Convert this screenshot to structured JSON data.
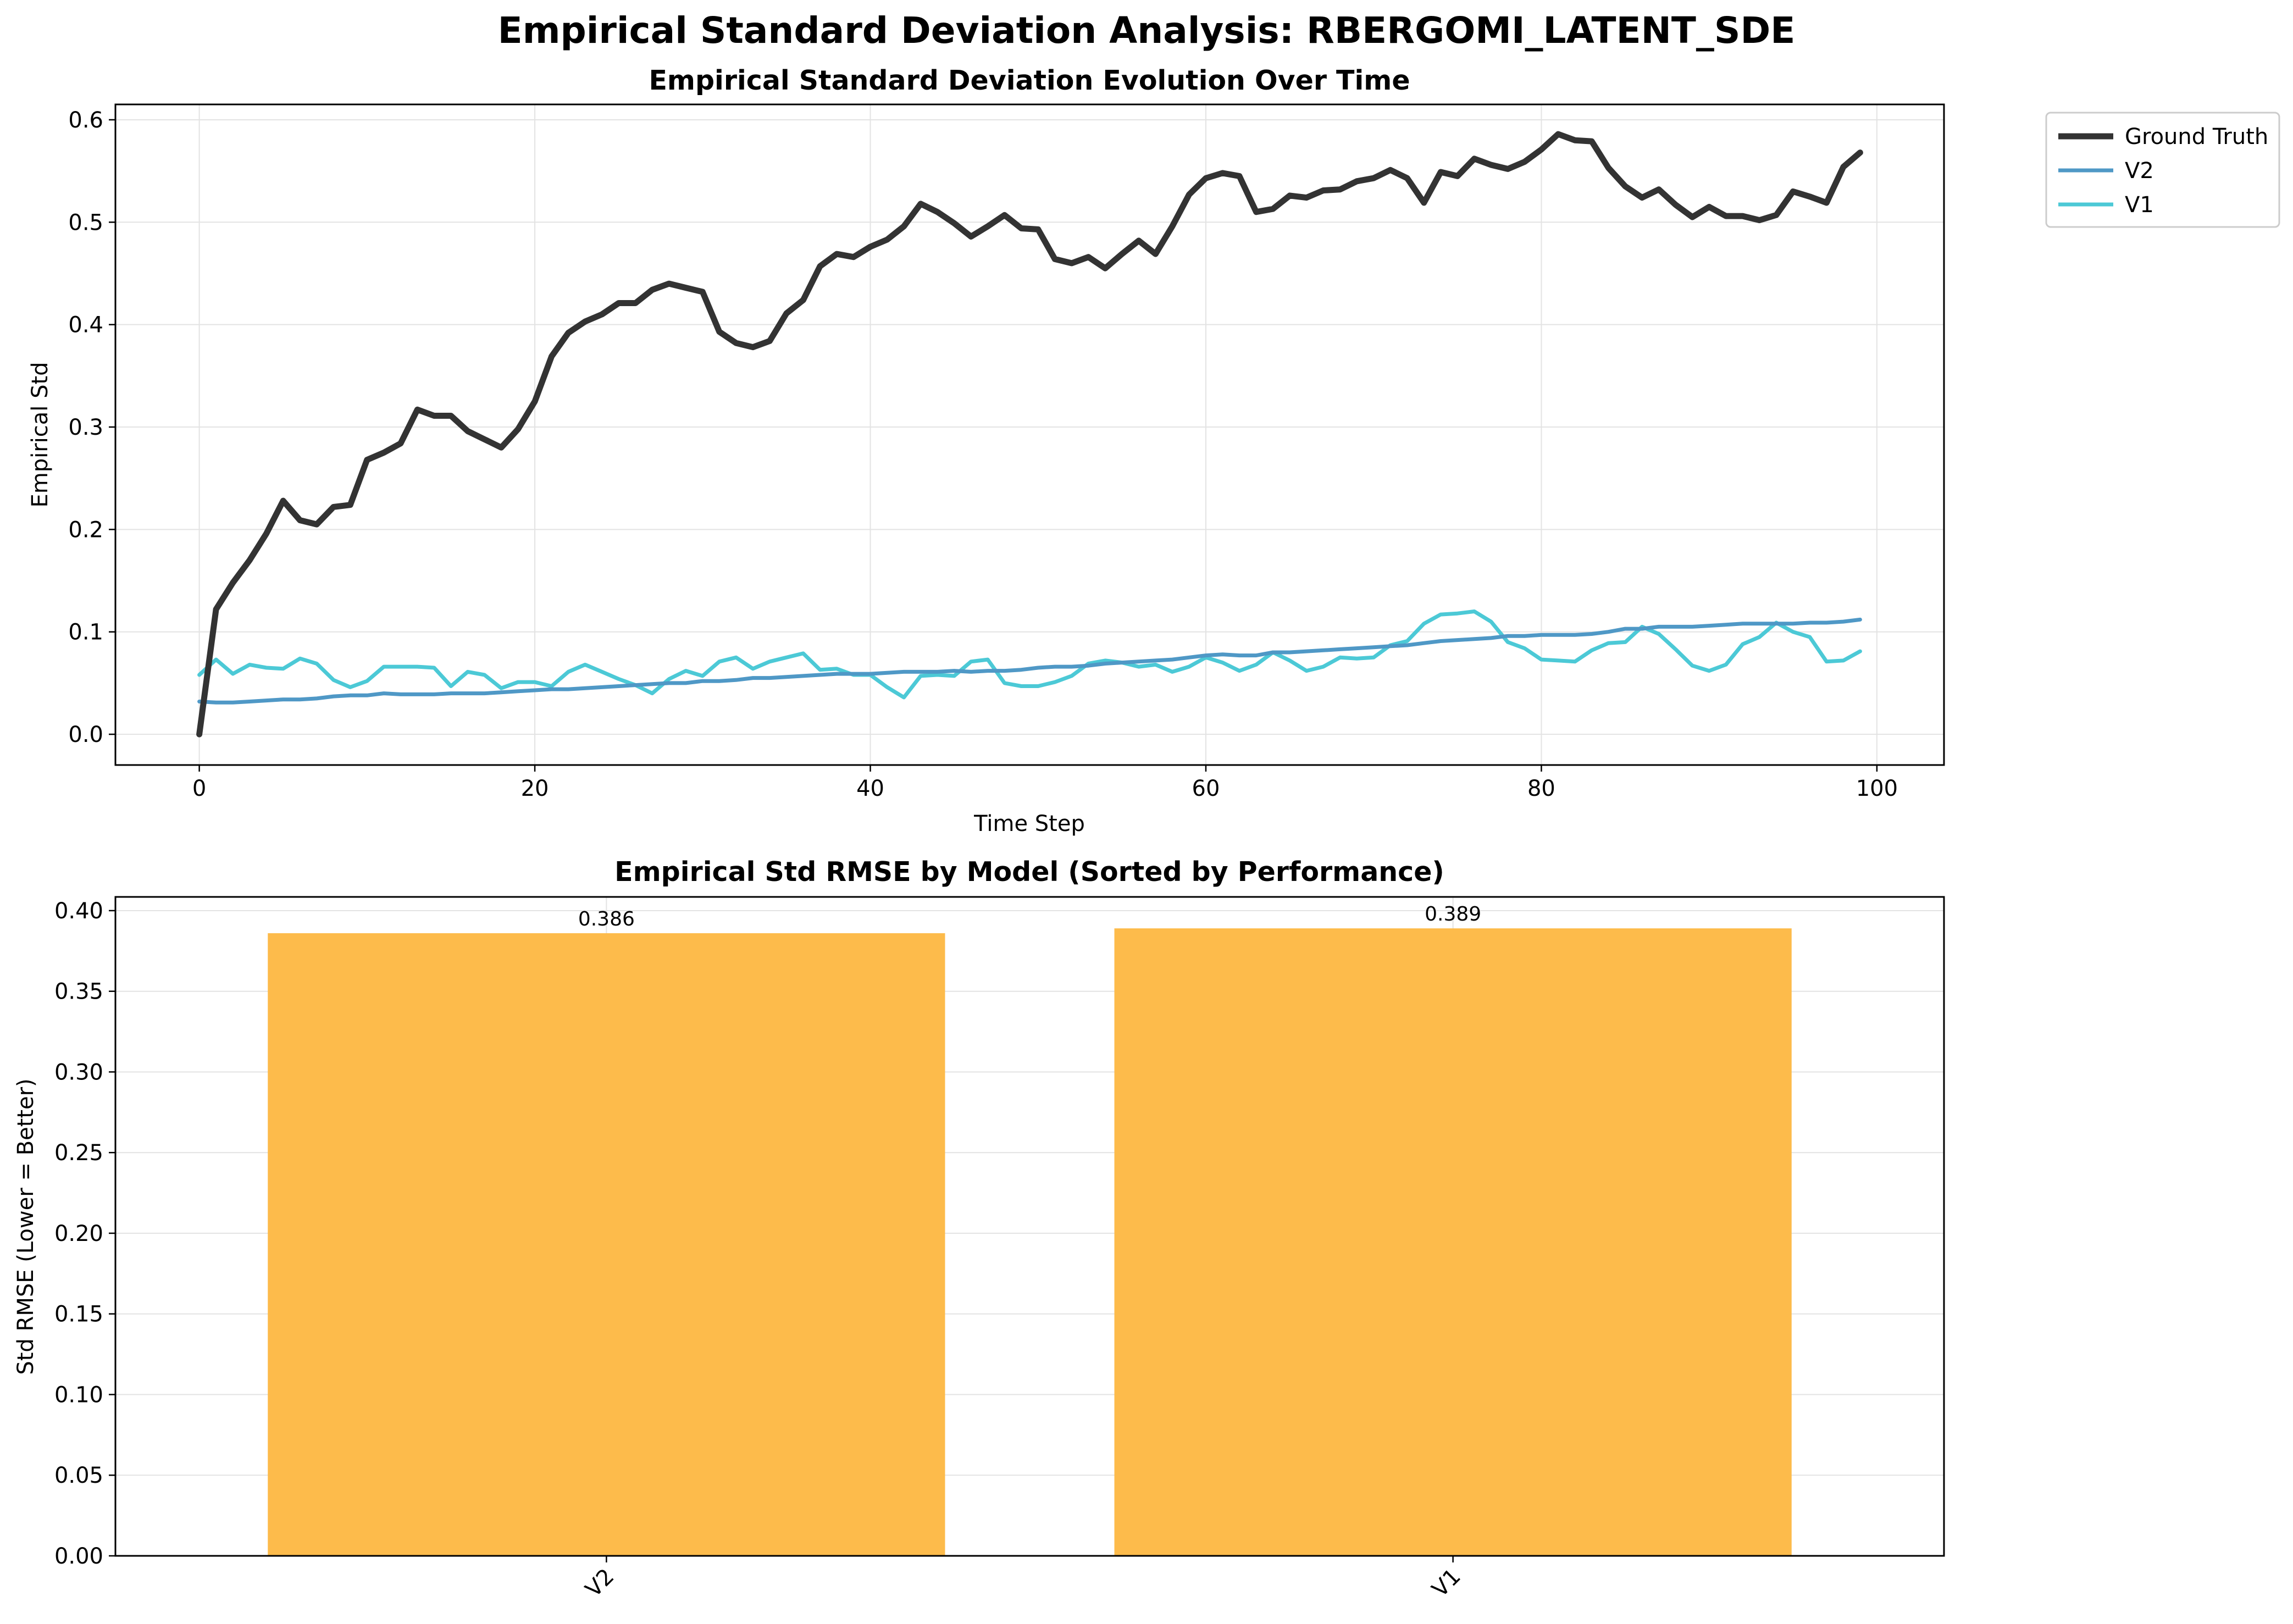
{
  "figure": {
    "suptitle": "Empirical Standard Deviation Analysis: RBERGOMI_LATENT_SDE"
  },
  "chart_data": [
    {
      "type": "line",
      "title": "Empirical Standard Deviation Evolution Over Time",
      "xlabel": "Time Step",
      "ylabel": "Empirical Std",
      "xlim": [
        -5,
        104
      ],
      "ylim": [
        -0.03,
        0.615
      ],
      "xticks": [
        0,
        20,
        40,
        60,
        80,
        100
      ],
      "xtick_labels": [
        "0",
        "20",
        "40",
        "60",
        "80",
        "100"
      ],
      "yticks": [
        0.0,
        0.1,
        0.2,
        0.3,
        0.4,
        0.5,
        0.6
      ],
      "ytick_labels": [
        "0.0",
        "0.1",
        "0.2",
        "0.3",
        "0.4",
        "0.5",
        "0.6"
      ],
      "grid": true,
      "legend_position": "outside-top-right",
      "series": [
        {
          "name": "Ground Truth",
          "color": "#333333",
          "values": [
            0.0,
            0.122,
            0.148,
            0.17,
            0.196,
            0.228,
            0.209,
            0.205,
            0.222,
            0.224,
            0.268,
            0.275,
            0.284,
            0.317,
            0.311,
            0.311,
            0.296,
            0.288,
            0.28,
            0.298,
            0.325,
            0.369,
            0.392,
            0.403,
            0.41,
            0.421,
            0.421,
            0.434,
            0.44,
            0.436,
            0.432,
            0.393,
            0.382,
            0.378,
            0.384,
            0.411,
            0.424,
            0.457,
            0.469,
            0.466,
            0.476,
            0.483,
            0.496,
            0.518,
            0.51,
            0.499,
            0.486,
            0.496,
            0.507,
            0.494,
            0.493,
            0.464,
            0.46,
            0.466,
            0.455,
            0.469,
            0.482,
            0.469,
            0.496,
            0.527,
            0.543,
            0.548,
            0.545,
            0.51,
            0.513,
            0.526,
            0.524,
            0.531,
            0.532,
            0.54,
            0.543,
            0.551,
            0.543,
            0.519,
            0.549,
            0.545,
            0.562,
            0.556,
            0.552,
            0.559,
            0.571,
            0.586,
            0.58,
            0.579,
            0.553,
            0.535,
            0.524,
            0.532,
            0.517,
            0.505,
            0.515,
            0.506,
            0.506,
            0.502,
            0.507,
            0.53,
            0.525,
            0.519,
            0.554,
            0.568
          ]
        },
        {
          "name": "V2",
          "color": "#4f98c6",
          "values": [
            0.032,
            0.031,
            0.031,
            0.032,
            0.033,
            0.034,
            0.034,
            0.035,
            0.037,
            0.038,
            0.038,
            0.04,
            0.039,
            0.039,
            0.039,
            0.04,
            0.04,
            0.04,
            0.041,
            0.042,
            0.043,
            0.044,
            0.044,
            0.045,
            0.046,
            0.047,
            0.048,
            0.049,
            0.05,
            0.05,
            0.052,
            0.052,
            0.053,
            0.055,
            0.055,
            0.056,
            0.057,
            0.058,
            0.059,
            0.059,
            0.059,
            0.06,
            0.061,
            0.061,
            0.061,
            0.062,
            0.061,
            0.062,
            0.062,
            0.063,
            0.065,
            0.066,
            0.066,
            0.067,
            0.069,
            0.07,
            0.071,
            0.072,
            0.073,
            0.075,
            0.077,
            0.078,
            0.077,
            0.077,
            0.08,
            0.08,
            0.081,
            0.082,
            0.083,
            0.084,
            0.085,
            0.086,
            0.087,
            0.089,
            0.091,
            0.092,
            0.093,
            0.094,
            0.096,
            0.096,
            0.097,
            0.097,
            0.097,
            0.098,
            0.1,
            0.103,
            0.103,
            0.105,
            0.105,
            0.105,
            0.106,
            0.107,
            0.108,
            0.108,
            0.108,
            0.108,
            0.109,
            0.109,
            0.11,
            0.112
          ]
        },
        {
          "name": "V1",
          "color": "#4cc9d6",
          "values": [
            0.058,
            0.073,
            0.059,
            0.068,
            0.065,
            0.064,
            0.074,
            0.069,
            0.053,
            0.046,
            0.052,
            0.066,
            0.066,
            0.066,
            0.065,
            0.047,
            0.061,
            0.058,
            0.045,
            0.051,
            0.051,
            0.047,
            0.061,
            0.068,
            0.061,
            0.054,
            0.048,
            0.04,
            0.054,
            0.062,
            0.057,
            0.071,
            0.075,
            0.064,
            0.071,
            0.075,
            0.079,
            0.063,
            0.064,
            0.058,
            0.058,
            0.046,
            0.036,
            0.057,
            0.058,
            0.057,
            0.071,
            0.073,
            0.05,
            0.047,
            0.047,
            0.051,
            0.057,
            0.069,
            0.072,
            0.07,
            0.066,
            0.068,
            0.061,
            0.066,
            0.075,
            0.07,
            0.062,
            0.068,
            0.08,
            0.072,
            0.062,
            0.066,
            0.075,
            0.074,
            0.075,
            0.087,
            0.091,
            0.108,
            0.117,
            0.118,
            0.12,
            0.11,
            0.09,
            0.084,
            0.073,
            0.072,
            0.071,
            0.082,
            0.089,
            0.09,
            0.105,
            0.098,
            0.083,
            0.067,
            0.062,
            0.068,
            0.088,
            0.095,
            0.109,
            0.1,
            0.095,
            0.071,
            0.072,
            0.081
          ]
        }
      ]
    },
    {
      "type": "bar",
      "title": "Empirical Std RMSE by Model (Sorted by Performance)",
      "xlabel": "",
      "ylabel": "Std RMSE (Lower = Better)",
      "categories": [
        "V2",
        "V1"
      ],
      "values": [
        0.386,
        0.389
      ],
      "value_labels": [
        "0.386",
        "0.389"
      ],
      "bar_color": "#fdbb4b",
      "ylim": [
        0,
        0.4085
      ],
      "yticks": [
        0.0,
        0.05,
        0.1,
        0.15,
        0.2,
        0.25,
        0.3,
        0.35,
        0.4
      ],
      "ytick_labels": [
        "0.00",
        "0.05",
        "0.10",
        "0.15",
        "0.20",
        "0.25",
        "0.30",
        "0.35",
        "0.40"
      ],
      "grid": true
    }
  ]
}
